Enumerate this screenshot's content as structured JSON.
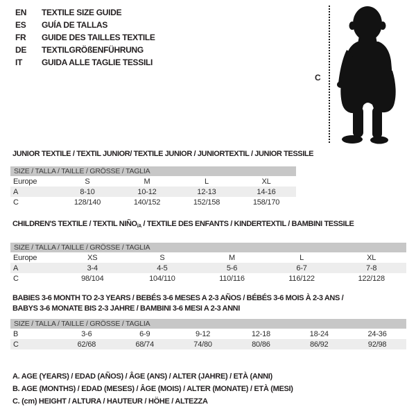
{
  "header": {
    "languages": [
      {
        "code": "EN",
        "title": "TEXTILE SIZE GUIDE"
      },
      {
        "code": "ES",
        "title": "GUÍA DE TALLAS"
      },
      {
        "code": "FR",
        "title": "GUIDE DES TAILLES TEXTILE"
      },
      {
        "code": "DE",
        "title": "TEXTILGRÖßENFÜHRUNG"
      },
      {
        "code": "IT",
        "title": "GUIDA ALLE TAGLIE TESSILI"
      }
    ]
  },
  "figure": {
    "height_label": "C",
    "icon": "baby-silhouette"
  },
  "sections": [
    {
      "title": "JUNIOR TEXTILE / TEXTIL JUNIOR/ TEXTILE JUNIOR / JUNIORTEXTIL / JUNIOR TESSILE",
      "size_header": "SIZE / TALLA / TAILLE / GRÖSSE / TAGLIA",
      "rows": [
        [
          "Europe",
          "S",
          "M",
          "L",
          "XL"
        ],
        [
          "A",
          "8-10",
          "10-12",
          "12-13",
          "14-16"
        ],
        [
          "C",
          "128/140",
          "140/152",
          "152/158",
          "158/170"
        ]
      ]
    },
    {
      "title_pre": "CHILDREN'S TEXTILE / TEXTIL NIÑO",
      "title_sub": "/A",
      "title_post": " / TEXTILE DES ENFANTS / KINDERTEXTIL / BAMBINI TESSILE",
      "size_header": "SIZE / TALLA / TAILLE / GRÖSSE / TAGLIA",
      "rows": [
        [
          "Europe",
          "XS",
          "S",
          "M",
          "L",
          "XL"
        ],
        [
          "A",
          "3-4",
          "4-5",
          "5-6",
          "6-7",
          "7-8"
        ],
        [
          "C",
          "98/104",
          "104/110",
          "110/116",
          "116/122",
          "122/128"
        ]
      ]
    },
    {
      "title_line1": "BABIES 3-6 MONTH TO 2-3 YEARS / BEBÉS 3-6 MESES A 2-3 AÑOS / BÉBÉS 3-6 MOIS À 2-3 ANS /",
      "title_line2": "BABYS 3-6 MONATE BIS 2-3 JAHRE / BAMBINI 3-6 MESI A 2-3 ANNI",
      "size_header": "SIZE / TALLA / TAILLE / GRÖSSE / TAGLIA",
      "rows": [
        [
          "B",
          "3-6",
          "6-9",
          "9-12",
          "12-18",
          "18-24",
          "24-36"
        ],
        [
          "C",
          "62/68",
          "68/74",
          "74/80",
          "80/86",
          "86/92",
          "92/98"
        ]
      ]
    }
  ],
  "footnotes": [
    "A. AGE (YEARS) / EDAD (AÑOS) / ÂGE (ANS) / ALTER (JAHRE) / ETÀ (ANNI)",
    "B. AGE (MONTHS) / EDAD (MESES) / ÂGE (MOIS) / ALTER (MONATE) / ETÀ (MESI)",
    "C. (cm) HEIGHT / ALTURA / HAUTEUR / HÖHE / ALTEZZA"
  ],
  "colors": {
    "band": "#c7c7c7",
    "stripe": "#ededed",
    "ink": "#231f20"
  }
}
